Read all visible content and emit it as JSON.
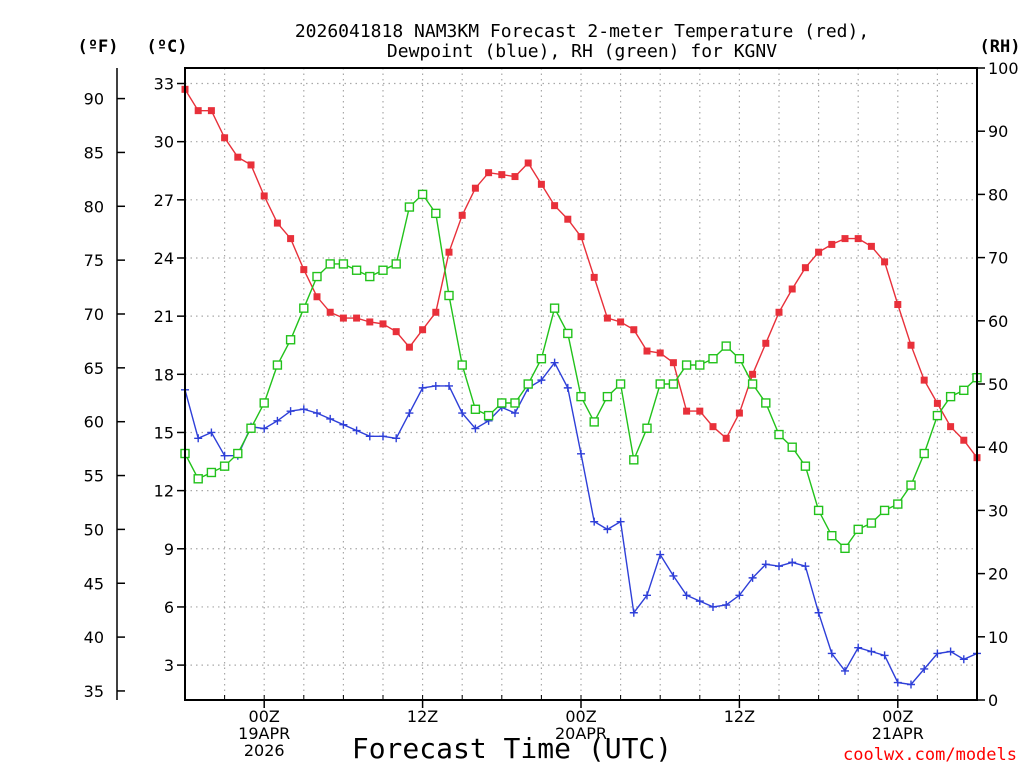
{
  "chart_data": {
    "type": "line",
    "title_lines": [
      "2026041818 NAM3KM Forecast 2-meter Temperature (red),",
      "Dewpoint (blue), RH (green) for KGNV"
    ],
    "xlabel": "Forecast Time (UTC)",
    "credit": "coolwx.com/models",
    "credit_color": "#ff0000",
    "units": {
      "fahrenheit": "(ºF)",
      "celsius": "(ºC)",
      "rh": "(RH)"
    },
    "x_range_hours": [
      0,
      60
    ],
    "ylim_celsius": [
      1.2,
      33.8
    ],
    "ylim_rh": [
      0,
      100
    ],
    "fahrenheit_ticks": [
      "35",
      "40",
      "45",
      "50",
      "55",
      "60",
      "65",
      "70",
      "75",
      "80",
      "85",
      "90"
    ],
    "celsius_ticks": [
      "3",
      "6",
      "9",
      "12",
      "15",
      "18",
      "21",
      "24",
      "27",
      "30",
      "33"
    ],
    "rh_ticks": [
      "0",
      "10",
      "20",
      "30",
      "40",
      "50",
      "60",
      "70",
      "80",
      "90",
      "100"
    ],
    "x_ticks": [
      {
        "hour": 6,
        "lines": [
          "00Z",
          "19APR",
          "2026"
        ]
      },
      {
        "hour": 18,
        "lines": [
          "12Z"
        ]
      },
      {
        "hour": 30,
        "lines": [
          "00Z",
          "20APR"
        ]
      },
      {
        "hour": 42,
        "lines": [
          "12Z"
        ]
      },
      {
        "hour": 54,
        "lines": [
          "00Z",
          "21APR"
        ]
      }
    ],
    "grid": true,
    "series": [
      {
        "name": "2-meter Temperature",
        "axis": "celsius",
        "color": "#e8303a",
        "marker": "filled-square",
        "values": [
          32.7,
          31.6,
          31.6,
          30.2,
          29.2,
          28.8,
          27.2,
          25.8,
          25.0,
          23.4,
          22.0,
          21.2,
          20.9,
          20.9,
          20.7,
          20.6,
          20.2,
          19.4,
          20.3,
          21.2,
          24.3,
          26.2,
          27.6,
          28.4,
          28.3,
          28.2,
          28.9,
          27.8,
          26.7,
          26.0,
          25.1,
          23.0,
          20.9,
          20.7,
          20.3,
          19.2,
          19.1,
          18.6,
          16.1,
          16.1,
          15.3,
          14.7,
          16.0,
          18.0,
          19.6,
          21.2,
          22.4,
          23.5,
          24.3,
          24.7,
          25.0,
          25.0,
          24.6,
          23.8,
          21.6,
          19.5,
          17.7,
          16.5,
          15.3,
          14.6,
          13.7
        ]
      },
      {
        "name": "Dewpoint",
        "axis": "celsius",
        "color": "#2e3fd8",
        "marker": "plus",
        "values": [
          17.2,
          14.7,
          15.0,
          13.8,
          13.8,
          15.3,
          15.2,
          15.6,
          16.1,
          16.2,
          16.0,
          15.7,
          15.4,
          15.1,
          14.8,
          14.8,
          14.7,
          16.0,
          17.3,
          17.4,
          17.4,
          16.0,
          15.2,
          15.6,
          16.3,
          16.0,
          17.3,
          17.7,
          18.6,
          17.3,
          13.9,
          10.4,
          10.0,
          10.4,
          5.7,
          6.6,
          8.7,
          7.6,
          6.6,
          6.3,
          6.0,
          6.1,
          6.6,
          7.5,
          8.2,
          8.1,
          8.3,
          8.1,
          5.7,
          3.6,
          2.7,
          3.9,
          3.7,
          3.5,
          2.1,
          2.0,
          2.8,
          3.6,
          3.7,
          3.3,
          3.6
        ]
      },
      {
        "name": "RH",
        "axis": "rh",
        "color": "#22c21b",
        "marker": "open-square",
        "values": [
          39,
          35,
          36,
          37,
          39,
          43,
          47,
          53,
          57,
          62,
          67,
          69,
          69,
          68,
          67,
          68,
          69,
          78,
          80,
          77,
          64,
          53,
          46,
          45,
          47,
          47,
          50,
          54,
          62,
          58,
          48,
          44,
          48,
          50,
          38,
          43,
          50,
          50,
          53,
          53,
          54,
          56,
          54,
          50,
          47,
          42,
          40,
          37,
          30,
          26,
          24,
          27,
          28,
          30,
          31,
          34,
          39,
          45,
          48,
          49,
          51
        ]
      }
    ]
  }
}
